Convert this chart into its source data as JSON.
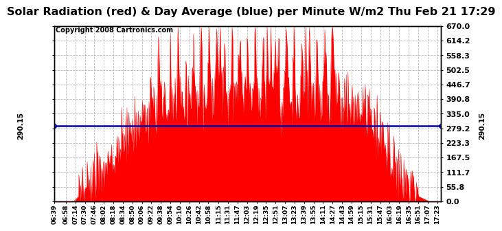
{
  "title": "Solar Radiation (red) & Day Average (blue) per Minute W/m2 Thu Feb 21 17:29",
  "copyright": "Copyright 2008 Cartronics.com",
  "avg_line_value": 290.15,
  "ymin": 0.0,
  "ymax": 670.0,
  "yticks": [
    0.0,
    55.8,
    111.7,
    167.5,
    223.3,
    279.2,
    335.0,
    390.8,
    446.7,
    502.5,
    558.3,
    614.2,
    670.0
  ],
  "fill_color": "#FF0000",
  "line_color": "#0000AA",
  "background_color": "#FFFFFF",
  "grid_color": "#999999",
  "title_fontsize": 11.5,
  "copyright_fontsize": 7,
  "xtick_labels": [
    "06:39",
    "06:58",
    "07:14",
    "07:30",
    "07:46",
    "08:02",
    "08:18",
    "08:34",
    "08:50",
    "09:06",
    "09:22",
    "09:38",
    "09:54",
    "10:10",
    "10:26",
    "10:42",
    "10:58",
    "11:15",
    "11:31",
    "11:47",
    "12:03",
    "12:19",
    "12:35",
    "12:51",
    "13:07",
    "13:23",
    "13:39",
    "13:55",
    "14:11",
    "14:27",
    "14:43",
    "14:59",
    "15:15",
    "15:31",
    "15:47",
    "16:03",
    "16:19",
    "16:35",
    "16:51",
    "17:07",
    "17:23"
  ],
  "start_time": "06:39",
  "end_time": "17:29"
}
